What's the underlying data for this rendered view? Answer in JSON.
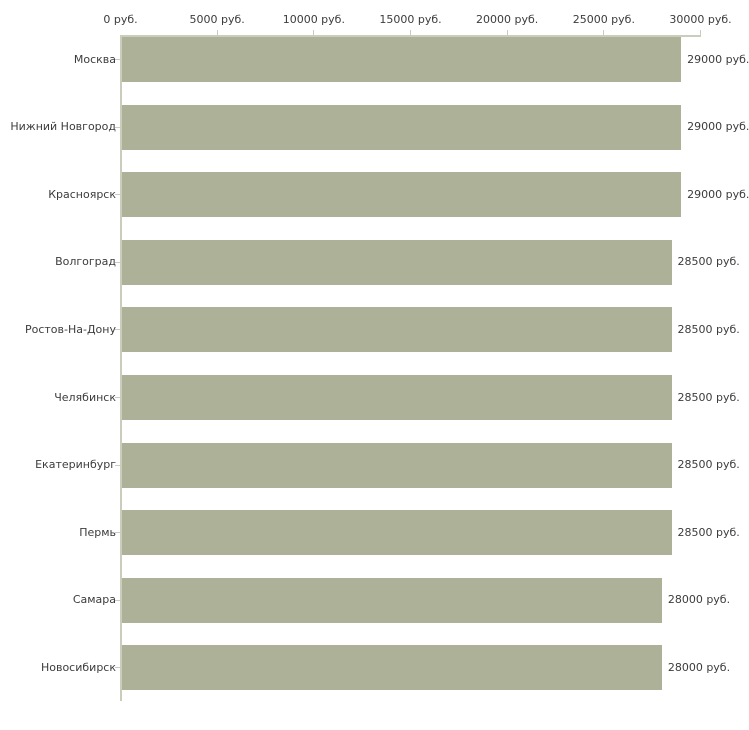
{
  "chart_data": {
    "type": "bar",
    "orientation": "horizontal",
    "title": "",
    "categories": [
      "Москва",
      "Нижний Новгород",
      "Красноярск",
      "Волгоград",
      "Ростов-На-Дону",
      "Челябинск",
      "Екатеринбург",
      "Пермь",
      "Самара",
      "Новосибирск"
    ],
    "values": [
      29000,
      29000,
      29000,
      28500,
      28500,
      28500,
      28500,
      28500,
      28000,
      28000
    ],
    "value_labels": [
      "29000 руб.",
      "29000 руб.",
      "29000 руб.",
      "28500 руб.",
      "28500 руб.",
      "28500 руб.",
      "28500 руб.",
      "28500 руб.",
      "28000 руб.",
      "28000 руб."
    ],
    "x_axis": {
      "position": "top",
      "unit": "руб.",
      "min": 0,
      "max": 30000,
      "tick_step": 5000,
      "tick_values": [
        0,
        5000,
        10000,
        15000,
        20000,
        25000,
        30000
      ],
      "tick_labels": [
        "0 руб.",
        "5000 руб.",
        "10000 руб.",
        "15000 руб.",
        "20000 руб.",
        "25000 руб.",
        "30000 руб."
      ]
    },
    "legend": "none",
    "grid": "off",
    "colors": {
      "bar": "#acb197",
      "axis": "#ccccbc",
      "text": "#3c3c3c",
      "background": "#ffffff"
    }
  }
}
